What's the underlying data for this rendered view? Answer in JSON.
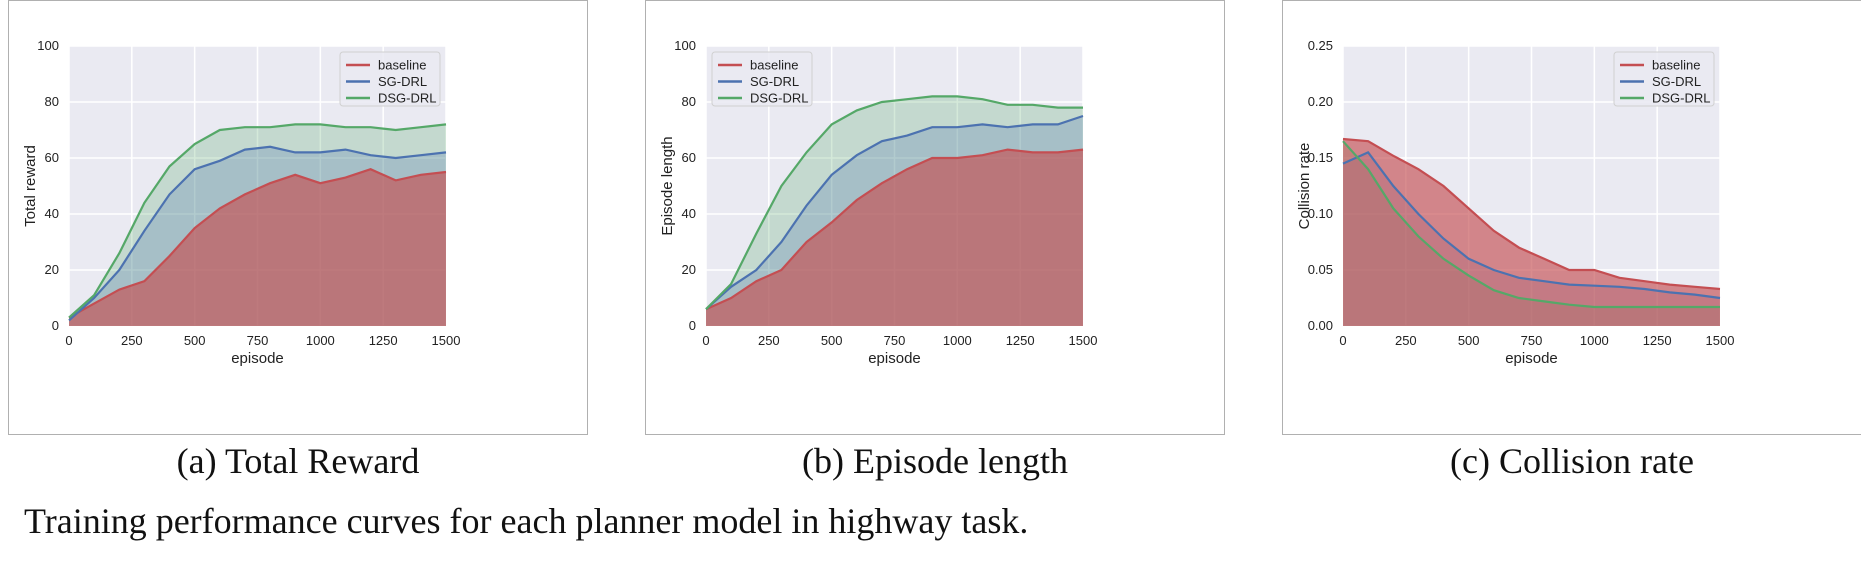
{
  "caption": "Training performance curves for each planner model in highway task.",
  "colors": {
    "baseline": "#c44e52",
    "sg": "#4c72b0",
    "dsg": "#55a868",
    "plot_bg": "#eaeaf2"
  },
  "chart_data": [
    {
      "type": "area",
      "subcaption": "(a) Total Reward",
      "xlabel": "episode",
      "ylabel": "Total reward",
      "xlim": [
        0,
        1500
      ],
      "ylim": [
        0,
        100
      ],
      "xticks": [
        0,
        250,
        500,
        750,
        1000,
        1250,
        1500
      ],
      "yticks": [
        0,
        20,
        40,
        60,
        80,
        100
      ],
      "ytick_labels": [
        "0",
        "20",
        "40",
        "60",
        "80",
        "100"
      ],
      "grid": true,
      "legend": "top-right",
      "x": [
        0,
        100,
        200,
        300,
        400,
        500,
        600,
        700,
        800,
        900,
        1000,
        1100,
        1200,
        1300,
        1400,
        1500
      ],
      "series": [
        {
          "name": "baseline",
          "values": [
            3,
            8,
            13,
            16,
            25,
            35,
            42,
            47,
            51,
            54,
            51,
            53,
            56,
            52,
            54,
            55
          ]
        },
        {
          "name": "SG-DRL",
          "values": [
            2,
            10,
            20,
            34,
            47,
            56,
            59,
            63,
            64,
            62,
            62,
            63,
            61,
            60,
            61,
            62
          ]
        },
        {
          "name": "DSG-DRL",
          "values": [
            3,
            11,
            26,
            44,
            57,
            65,
            70,
            71,
            71,
            72,
            72,
            71,
            71,
            70,
            71,
            72
          ]
        }
      ]
    },
    {
      "type": "area",
      "subcaption": "(b) Episode length",
      "xlabel": "episode",
      "ylabel": "Episode length",
      "xlim": [
        0,
        1500
      ],
      "ylim": [
        0,
        100
      ],
      "xticks": [
        0,
        250,
        500,
        750,
        1000,
        1250,
        1500
      ],
      "yticks": [
        0,
        20,
        40,
        60,
        80,
        100
      ],
      "ytick_labels": [
        "0",
        "20",
        "40",
        "60",
        "80",
        "100"
      ],
      "grid": true,
      "legend": "top-left",
      "x": [
        0,
        100,
        200,
        300,
        400,
        500,
        600,
        700,
        800,
        900,
        1000,
        1100,
        1200,
        1300,
        1400,
        1500
      ],
      "series": [
        {
          "name": "baseline",
          "values": [
            6,
            10,
            16,
            20,
            30,
            37,
            45,
            51,
            56,
            60,
            60,
            61,
            63,
            62,
            62,
            63
          ]
        },
        {
          "name": "SG-DRL",
          "values": [
            6,
            14,
            20,
            30,
            43,
            54,
            61,
            66,
            68,
            71,
            71,
            72,
            71,
            72,
            72,
            75
          ]
        },
        {
          "name": "DSG-DRL",
          "values": [
            6,
            15,
            33,
            50,
            62,
            72,
            77,
            80,
            81,
            82,
            82,
            81,
            79,
            79,
            78,
            78
          ]
        }
      ]
    },
    {
      "type": "area",
      "subcaption": "(c) Collision rate",
      "xlabel": "episode",
      "ylabel": "Collision rate",
      "xlim": [
        0,
        1500
      ],
      "ylim": [
        0,
        0.25
      ],
      "xticks": [
        0,
        250,
        500,
        750,
        1000,
        1250,
        1500
      ],
      "yticks": [
        0,
        0.05,
        0.1,
        0.15,
        0.2,
        0.25
      ],
      "ytick_labels": [
        "0.00",
        "0.05",
        "0.10",
        "0.15",
        "0.20",
        "0.25"
      ],
      "grid": true,
      "legend": "top-right",
      "x": [
        0,
        100,
        200,
        300,
        400,
        500,
        600,
        700,
        800,
        900,
        1000,
        1100,
        1200,
        1300,
        1400,
        1500
      ],
      "series": [
        {
          "name": "baseline",
          "values": [
            0.167,
            0.165,
            0.152,
            0.14,
            0.125,
            0.105,
            0.085,
            0.07,
            0.06,
            0.05,
            0.05,
            0.043,
            0.04,
            0.037,
            0.035,
            0.033
          ]
        },
        {
          "name": "SG-DRL",
          "values": [
            0.145,
            0.155,
            0.125,
            0.1,
            0.078,
            0.06,
            0.05,
            0.043,
            0.04,
            0.037,
            0.036,
            0.035,
            0.033,
            0.03,
            0.028,
            0.025
          ]
        },
        {
          "name": "DSG-DRL",
          "values": [
            0.165,
            0.14,
            0.105,
            0.08,
            0.06,
            0.045,
            0.032,
            0.025,
            0.022,
            0.019,
            0.017,
            0.017,
            0.017,
            0.017,
            0.017,
            0.017
          ]
        }
      ]
    }
  ]
}
